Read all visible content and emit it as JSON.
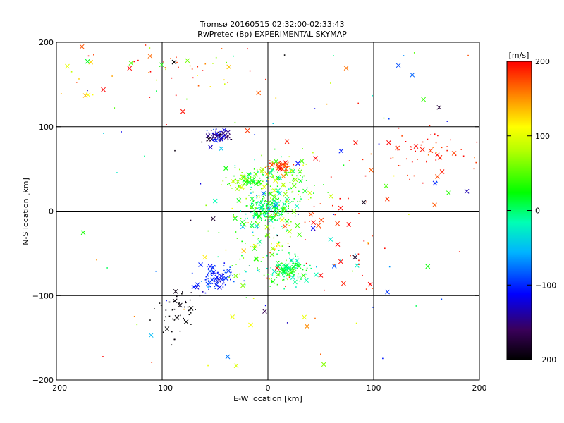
{
  "chart_data": {
    "type": "scatter",
    "title": "Tromsø 20160515 02:32:00-02:33:43",
    "subtitle": "RwPretec (8p) EXPERIMENTAL SKYMAP",
    "xlabel": "E-W location [km]",
    "ylabel": "N-S location [km]",
    "xlim": [
      -200,
      200
    ],
    "ylim": [
      -200,
      200
    ],
    "xticks": [
      -200,
      -100,
      0,
      100,
      200
    ],
    "yticks": [
      -200,
      -100,
      0,
      100,
      200
    ],
    "xtick_labels": [
      "−200",
      "−100",
      "0",
      "100",
      "200"
    ],
    "ytick_labels": [
      "−200",
      "−100",
      "0",
      "100",
      "200"
    ],
    "grid": true,
    "colorbar": {
      "label": "[m/s]",
      "range": [
        -200,
        200
      ],
      "ticks": [
        200,
        100,
        0,
        -100,
        -200
      ],
      "tick_labels": [
        "200",
        "100",
        "0",
        "−100",
        "−200"
      ]
    },
    "markers": {
      "dot": "meteor echo",
      "x": "meteor echo"
    },
    "clusters": [
      {
        "cx": -48,
        "cy": 88,
        "sx": 6,
        "sy": 4,
        "n": 70,
        "v": -150,
        "vs": 30
      },
      {
        "cx": 12,
        "cy": 53,
        "sx": 6,
        "sy": 3,
        "n": 55,
        "v": 180,
        "vs": 15
      },
      {
        "cx": 0,
        "cy": 0,
        "sx": 10,
        "sy": 10,
        "n": 160,
        "v": 0,
        "vs": 25
      },
      {
        "cx": 10,
        "cy": 30,
        "sx": 18,
        "sy": 18,
        "n": 150,
        "v": 50,
        "vs": 40
      },
      {
        "cx": -20,
        "cy": 35,
        "sx": 10,
        "sy": 5,
        "n": 60,
        "v": 40,
        "vs": 30
      },
      {
        "cx": 20,
        "cy": -70,
        "sx": 10,
        "sy": 7,
        "n": 110,
        "v": 10,
        "vs": 20
      },
      {
        "cx": -50,
        "cy": -80,
        "sx": 10,
        "sy": 8,
        "n": 90,
        "v": -100,
        "vs": 15
      },
      {
        "cx": -85,
        "cy": -120,
        "sx": 10,
        "sy": 15,
        "n": 50,
        "v": -200,
        "vs": 5
      },
      {
        "cx": -10,
        "cy": -35,
        "sx": 20,
        "sy": 30,
        "n": 120,
        "v": 40,
        "vs": 50
      },
      {
        "cx": 150,
        "cy": 70,
        "sx": 28,
        "sy": 15,
        "n": 60,
        "v": 190,
        "vs": 15
      },
      {
        "cx": 60,
        "cy": -20,
        "sx": 30,
        "sy": 45,
        "n": 55,
        "v": 190,
        "vs": 15
      },
      {
        "cx": -100,
        "cy": 170,
        "sx": 55,
        "sy": 20,
        "n": 55,
        "v": 150,
        "vs": 60
      }
    ]
  }
}
